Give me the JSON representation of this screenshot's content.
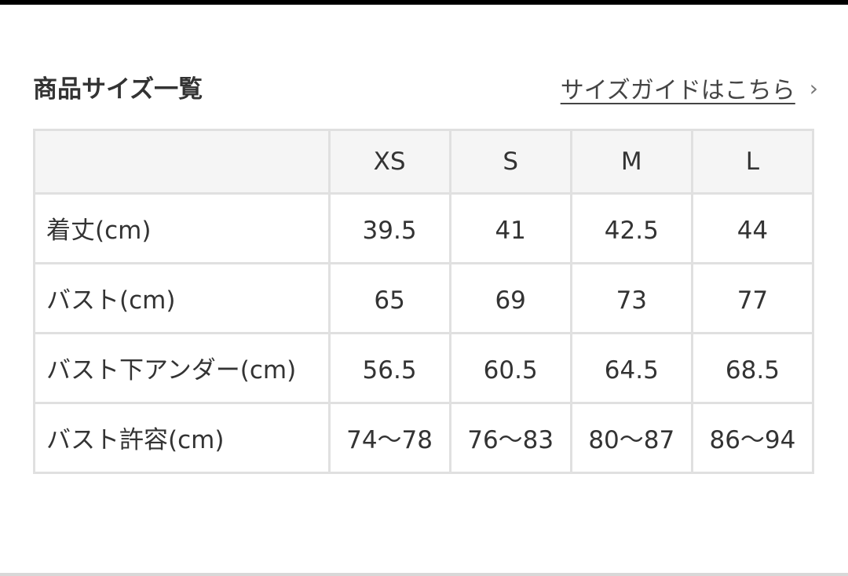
{
  "header": {
    "title": "商品サイズ一覧",
    "guide_link": "サイズガイドはこちら"
  },
  "icons": {
    "guide_chevron": "chevron-right-icon"
  },
  "table": {
    "columns": [
      "",
      "XS",
      "S",
      "M",
      "L"
    ],
    "rows": [
      {
        "label": "着丈(cm)",
        "values": [
          "39.5",
          "41",
          "42.5",
          "44"
        ]
      },
      {
        "label": "バスト(cm)",
        "values": [
          "65",
          "69",
          "73",
          "77"
        ]
      },
      {
        "label": "バスト下アンダー(cm)",
        "values": [
          "56.5",
          "60.5",
          "64.5",
          "68.5"
        ]
      },
      {
        "label": "バスト許容(cm)",
        "values": [
          "74〜78",
          "76〜83",
          "80〜87",
          "86〜94"
        ]
      }
    ]
  }
}
